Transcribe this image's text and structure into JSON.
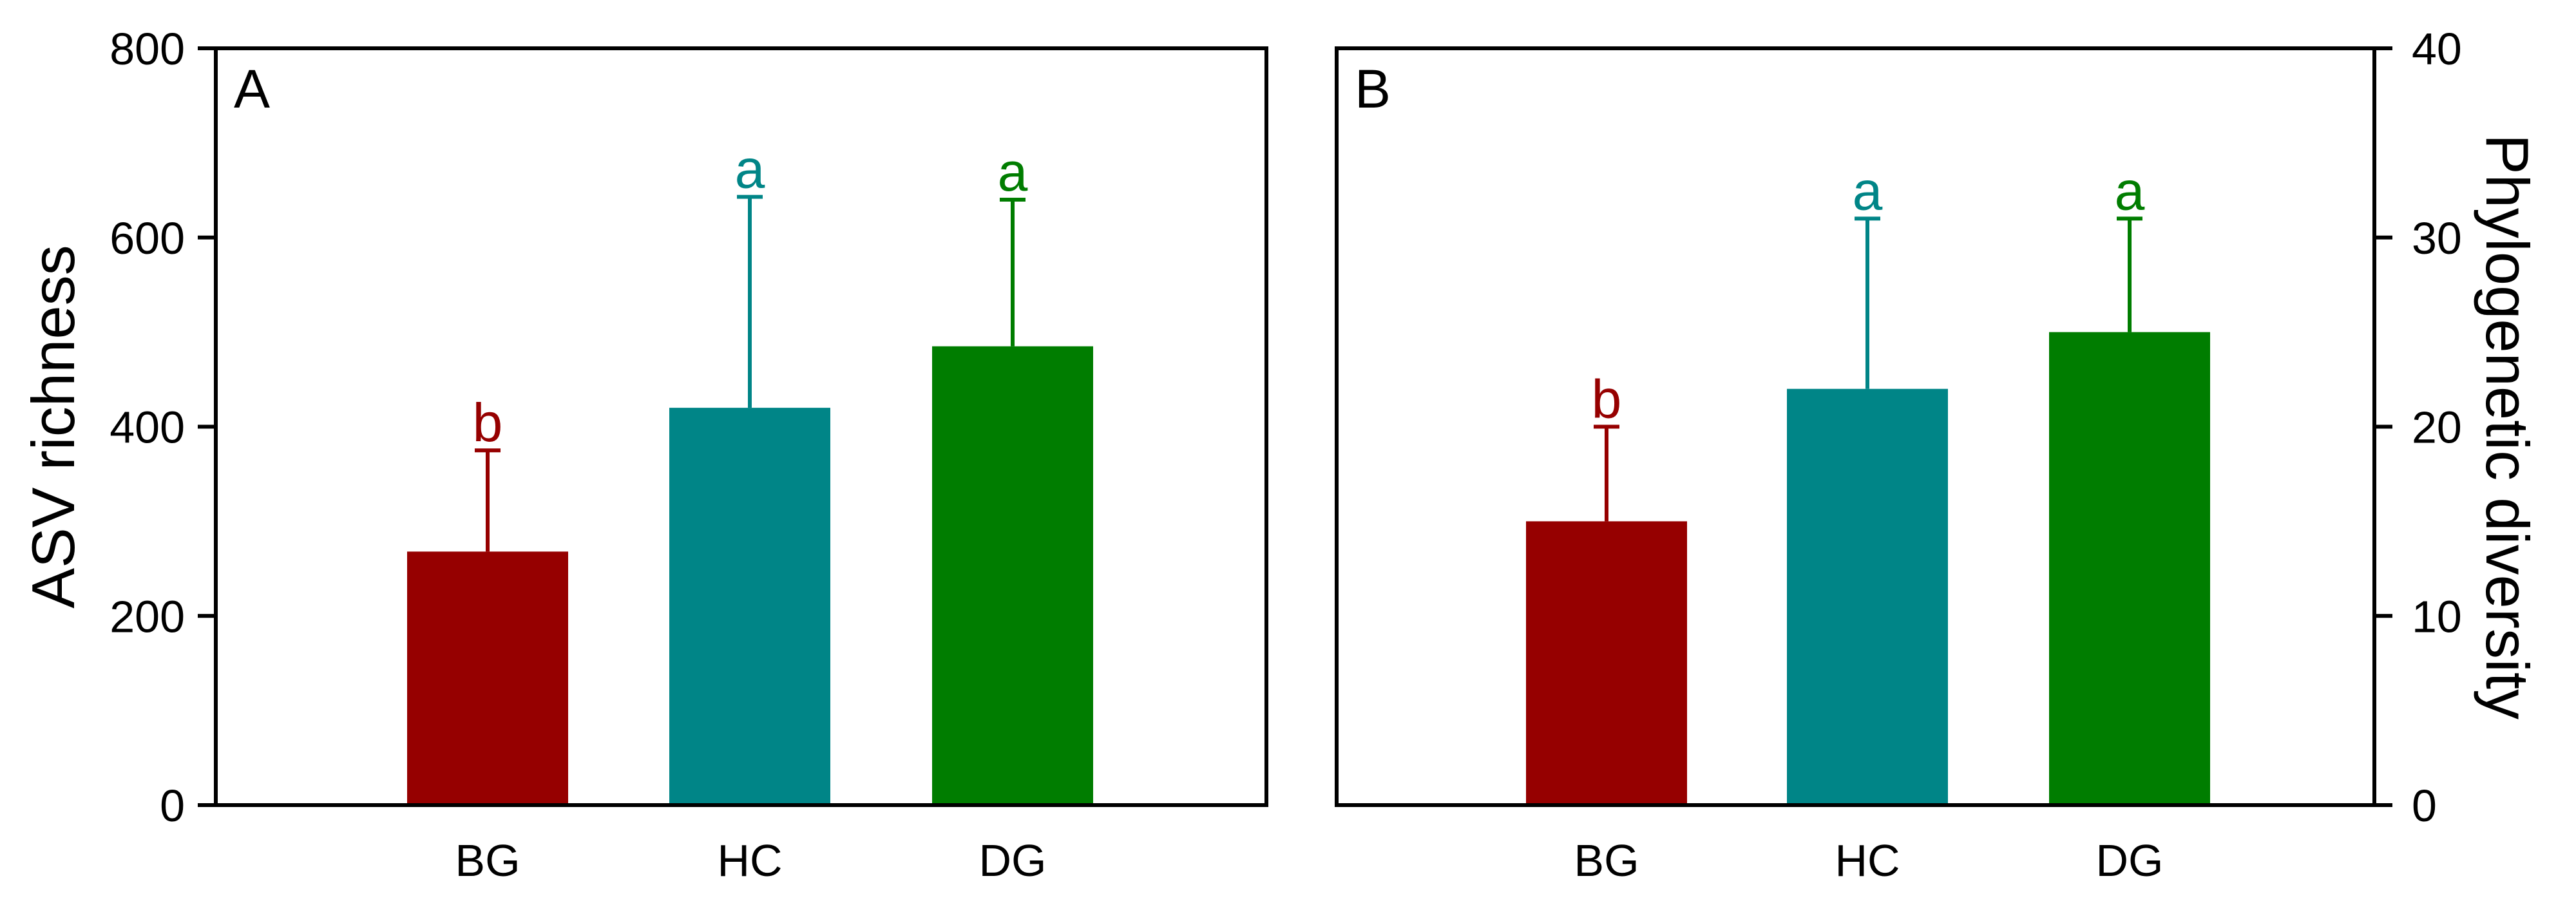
{
  "chart_data": [
    {
      "type": "bar",
      "panel_label": "A",
      "categories": [
        "BG",
        "HC",
        "DG"
      ],
      "values": [
        268,
        420,
        485
      ],
      "error_upper": [
        375,
        643,
        640
      ],
      "significance_letters": [
        "b",
        "a",
        "a"
      ],
      "colors": [
        "#960000",
        "#008587",
        "#007D00"
      ],
      "ylabel": "ASV richness",
      "ylim": [
        0,
        800
      ],
      "yticks": [
        0,
        200,
        400,
        600,
        800
      ],
      "y_axis_side": "left"
    },
    {
      "type": "bar",
      "panel_label": "B",
      "categories": [
        "BG",
        "HC",
        "DG"
      ],
      "values": [
        15,
        22,
        25
      ],
      "error_upper": [
        20,
        31,
        31
      ],
      "significance_letters": [
        "b",
        "a",
        "a"
      ],
      "colors": [
        "#960000",
        "#008587",
        "#007D00"
      ],
      "ylabel": "Phylogenetic diversity",
      "ylim": [
        0,
        40
      ],
      "yticks": [
        0,
        10,
        20,
        30,
        40
      ],
      "y_axis_side": "right"
    }
  ]
}
